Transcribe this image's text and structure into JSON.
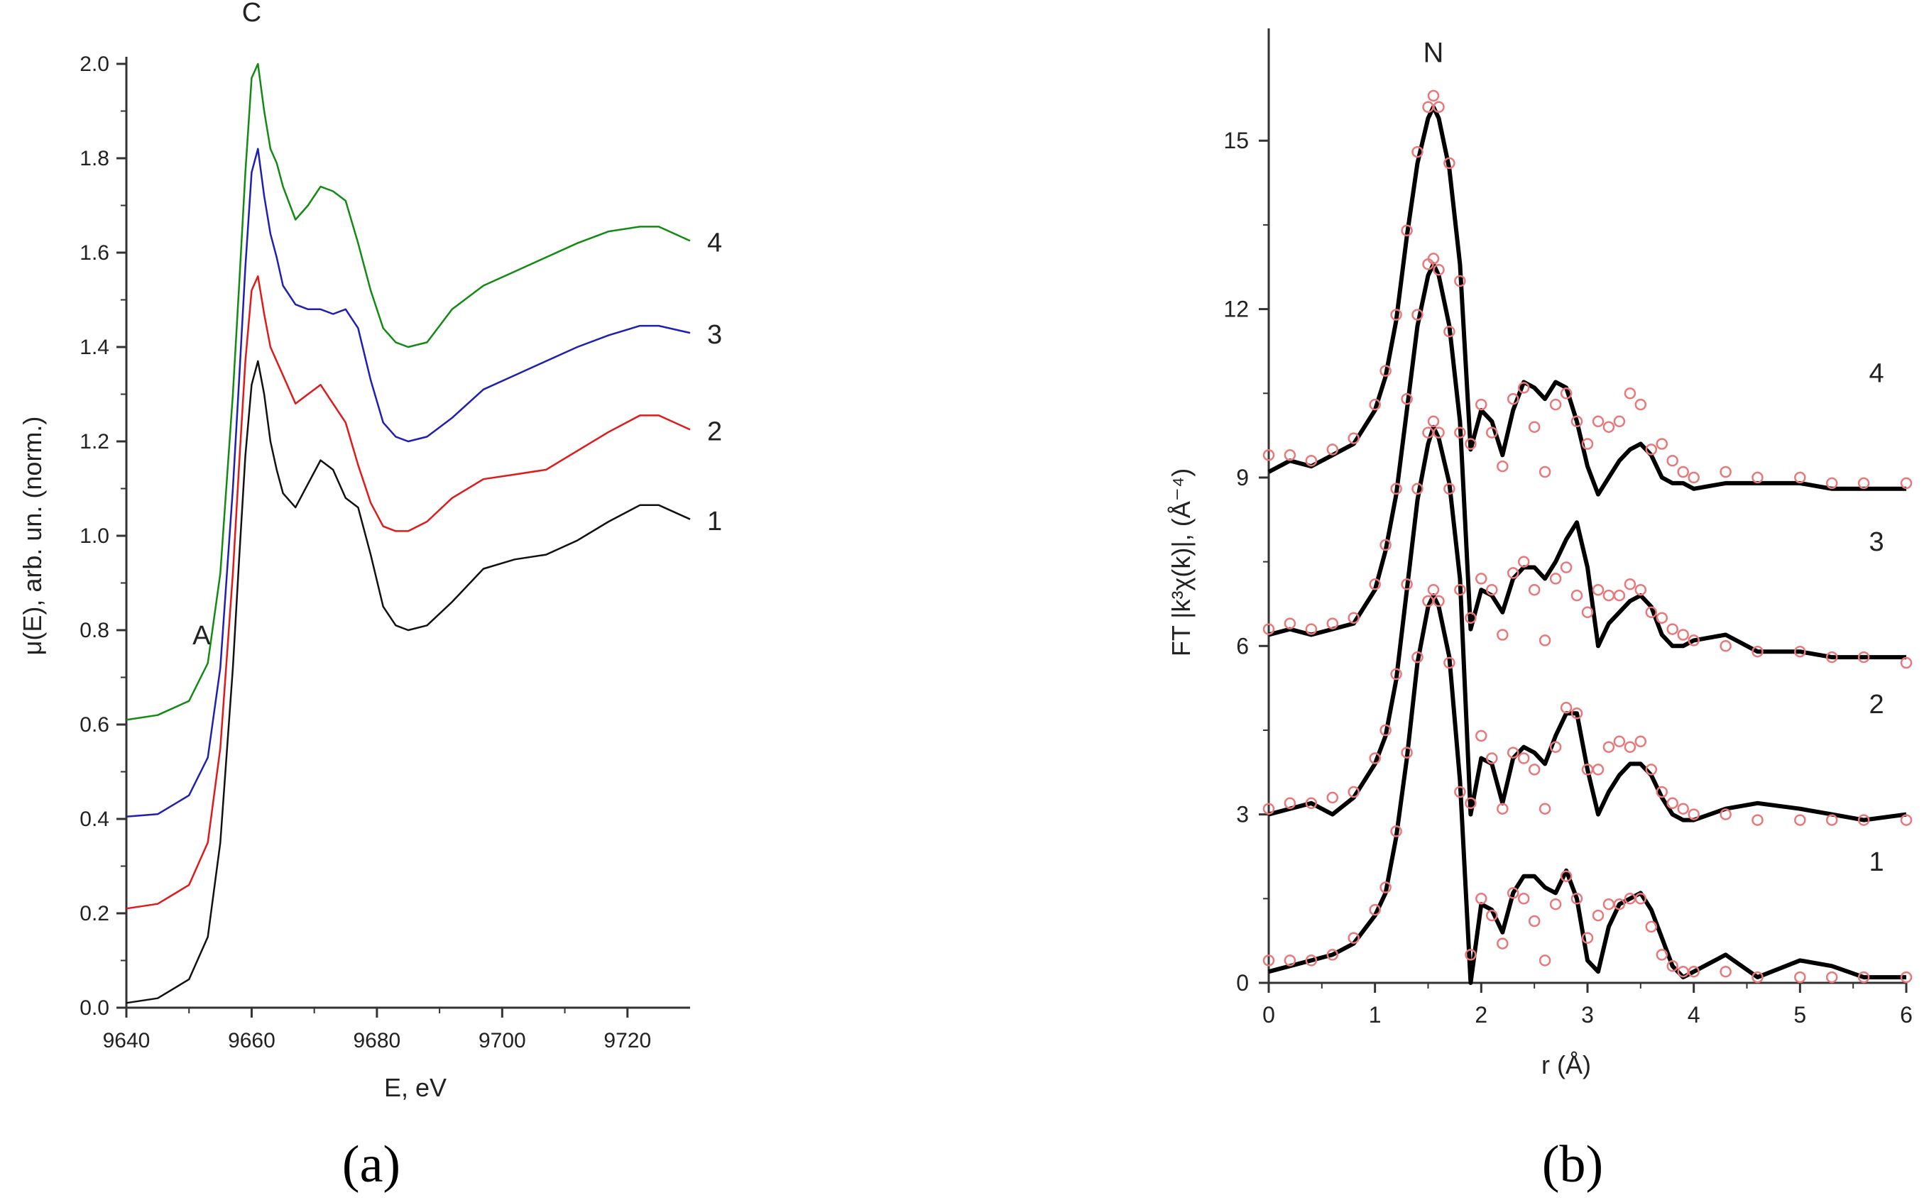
{
  "chart_data": [
    {
      "type": "line",
      "panel_label": "(a)",
      "title": "",
      "xlabel": "E, eV",
      "ylabel": "μ(E), arb. un. (norm.)",
      "xlim": [
        9640,
        9730
      ],
      "ylim": [
        0.0,
        2.0
      ],
      "xticks": [
        9640,
        9660,
        9680,
        9700,
        9720
      ],
      "xtick_labels": [
        "9640",
        "9660",
        "9680",
        "9700",
        "9720"
      ],
      "yticks": [
        0.0,
        0.2,
        0.4,
        0.6,
        0.8,
        1.0,
        1.2,
        1.4,
        1.6,
        1.8,
        2.0
      ],
      "ytick_labels": [
        "0.0",
        "0.2",
        "0.4",
        "0.6",
        "0.8",
        "1.0",
        "1.2",
        "1.4",
        "1.6",
        "1.8",
        "2.0"
      ],
      "annotations": [
        {
          "text": "A",
          "x": 9652,
          "y": 0.77
        },
        {
          "text": "C",
          "x": 9660,
          "y": 2.09
        }
      ],
      "x": [
        9640,
        9645,
        9650,
        9653,
        9655,
        9657,
        9658,
        9659,
        9660,
        9661,
        9662,
        9663,
        9664,
        9665,
        9667,
        9669,
        9671,
        9673,
        9675,
        9677,
        9679,
        9681,
        9683,
        9685,
        9688,
        9692,
        9697,
        9702,
        9707,
        9712,
        9717,
        9722,
        9725,
        9730
      ],
      "series": [
        {
          "name": "1",
          "label": "1",
          "color": "#111111",
          "values": [
            0.01,
            0.02,
            0.06,
            0.15,
            0.35,
            0.72,
            0.95,
            1.17,
            1.32,
            1.37,
            1.3,
            1.2,
            1.14,
            1.09,
            1.06,
            1.11,
            1.16,
            1.14,
            1.08,
            1.06,
            0.96,
            0.85,
            0.81,
            0.8,
            0.81,
            0.86,
            0.93,
            0.95,
            0.96,
            0.99,
            1.03,
            1.065,
            1.065,
            1.035
          ]
        },
        {
          "name": "2",
          "label": "2",
          "color": "#e01a1a",
          "values": [
            0.21,
            0.22,
            0.26,
            0.35,
            0.55,
            0.92,
            1.15,
            1.37,
            1.52,
            1.55,
            1.47,
            1.4,
            1.37,
            1.34,
            1.28,
            1.3,
            1.32,
            1.28,
            1.24,
            1.15,
            1.07,
            1.02,
            1.01,
            1.01,
            1.03,
            1.08,
            1.12,
            1.13,
            1.14,
            1.18,
            1.22,
            1.255,
            1.255,
            1.225
          ]
        },
        {
          "name": "3",
          "label": "3",
          "color": "#1f1fb0",
          "values": [
            0.405,
            0.41,
            0.45,
            0.53,
            0.72,
            1.1,
            1.33,
            1.57,
            1.77,
            1.82,
            1.72,
            1.64,
            1.59,
            1.53,
            1.49,
            1.48,
            1.48,
            1.47,
            1.48,
            1.44,
            1.33,
            1.24,
            1.21,
            1.2,
            1.21,
            1.25,
            1.31,
            1.34,
            1.37,
            1.4,
            1.425,
            1.445,
            1.445,
            1.43
          ]
        },
        {
          "name": "4",
          "label": "4",
          "color": "#138a13",
          "values": [
            0.61,
            0.62,
            0.65,
            0.73,
            0.92,
            1.3,
            1.53,
            1.77,
            1.97,
            2.0,
            1.9,
            1.82,
            1.79,
            1.74,
            1.67,
            1.7,
            1.74,
            1.73,
            1.71,
            1.62,
            1.52,
            1.44,
            1.41,
            1.4,
            1.41,
            1.48,
            1.53,
            1.56,
            1.59,
            1.62,
            1.645,
            1.655,
            1.655,
            1.625
          ]
        }
      ]
    },
    {
      "type": "line",
      "panel_label": "(b)",
      "title": "",
      "xlabel": "r (Å)",
      "ylabel": "FT |k³χ(k)|, (Å⁻⁴)",
      "xlim": [
        0,
        6
      ],
      "ylim": [
        0,
        17
      ],
      "xticks": [
        0,
        1,
        2,
        3,
        4,
        5,
        6
      ],
      "xtick_labels": [
        "0",
        "1",
        "2",
        "3",
        "4",
        "5",
        "6"
      ],
      "yticks": [
        0,
        3,
        6,
        9,
        12,
        15
      ],
      "ytick_labels": [
        "0",
        "3",
        "6",
        "9",
        "12",
        "15"
      ],
      "annotations": [
        {
          "text": "N",
          "x": 1.55,
          "y": 16.4
        }
      ],
      "x": [
        0,
        0.2,
        0.4,
        0.6,
        0.8,
        1.0,
        1.1,
        1.2,
        1.3,
        1.4,
        1.5,
        1.55,
        1.6,
        1.7,
        1.8,
        1.9,
        2.0,
        2.1,
        2.2,
        2.3,
        2.4,
        2.5,
        2.6,
        2.7,
        2.8,
        2.9,
        3.0,
        3.1,
        3.2,
        3.3,
        3.4,
        3.5,
        3.6,
        3.7,
        3.8,
        3.9,
        4.0,
        4.3,
        4.6,
        5.0,
        5.3,
        5.6,
        6.0
      ],
      "series": [
        {
          "name": "4 (fit)",
          "label": "4",
          "style": "line",
          "color": "#000000",
          "values": [
            9.1,
            9.3,
            9.2,
            9.4,
            9.6,
            10.2,
            10.8,
            11.8,
            13.3,
            14.6,
            15.4,
            15.6,
            15.4,
            14.5,
            12.8,
            9.5,
            10.2,
            10.0,
            9.4,
            10.2,
            10.7,
            10.6,
            10.4,
            10.7,
            10.6,
            10.0,
            9.2,
            8.7,
            9.0,
            9.3,
            9.5,
            9.6,
            9.4,
            9.0,
            8.9,
            8.9,
            8.8,
            8.9,
            8.9,
            8.9,
            8.8,
            8.8,
            8.8
          ]
        },
        {
          "name": "4 (exp)",
          "style": "markers",
          "color": "#e8787a",
          "values": [
            9.4,
            9.4,
            9.3,
            9.5,
            9.7,
            10.3,
            10.9,
            11.9,
            13.4,
            14.8,
            15.6,
            15.8,
            15.6,
            14.6,
            12.5,
            9.6,
            10.3,
            9.8,
            9.2,
            10.4,
            10.6,
            9.9,
            9.1,
            10.3,
            10.5,
            10.0,
            9.6,
            10.0,
            9.9,
            10.0,
            10.5,
            10.3,
            9.5,
            9.6,
            9.3,
            9.1,
            9.0,
            9.1,
            9.0,
            9.0,
            8.9,
            8.9,
            8.9
          ]
        },
        {
          "name": "3 (fit)",
          "label": "3",
          "style": "line",
          "color": "#000000",
          "values": [
            6.2,
            6.3,
            6.2,
            6.3,
            6.4,
            7.0,
            7.7,
            8.7,
            10.2,
            11.7,
            12.6,
            12.8,
            12.6,
            11.7,
            10.0,
            6.3,
            7.0,
            6.9,
            6.6,
            7.2,
            7.4,
            7.4,
            7.2,
            7.5,
            7.9,
            8.2,
            7.4,
            6.0,
            6.4,
            6.6,
            6.8,
            6.9,
            6.7,
            6.2,
            6.0,
            6.0,
            6.1,
            6.2,
            5.9,
            5.9,
            5.8,
            5.8,
            5.8
          ]
        },
        {
          "name": "3 (exp)",
          "style": "markers",
          "color": "#e8787a",
          "values": [
            6.3,
            6.4,
            6.3,
            6.4,
            6.5,
            7.1,
            7.8,
            8.8,
            10.4,
            11.9,
            12.8,
            12.9,
            12.7,
            11.6,
            9.8,
            6.5,
            7.2,
            7.0,
            6.2,
            7.3,
            7.5,
            7.0,
            6.1,
            7.2,
            7.4,
            6.9,
            6.6,
            7.0,
            6.9,
            6.9,
            7.1,
            7.0,
            6.6,
            6.5,
            6.3,
            6.2,
            6.1,
            6.0,
            5.9,
            5.9,
            5.8,
            5.8,
            5.7
          ]
        },
        {
          "name": "2 (fit)",
          "label": "2",
          "style": "line",
          "color": "#000000",
          "values": [
            3.0,
            3.1,
            3.2,
            3.0,
            3.3,
            3.9,
            4.4,
            5.4,
            7.0,
            8.6,
            9.6,
            9.9,
            9.7,
            8.9,
            7.2,
            3.0,
            4.0,
            3.9,
            3.2,
            4.0,
            4.2,
            4.1,
            3.9,
            4.4,
            4.8,
            4.8,
            3.8,
            3.0,
            3.4,
            3.7,
            3.9,
            3.9,
            3.7,
            3.3,
            3.0,
            2.9,
            2.9,
            3.1,
            3.2,
            3.1,
            3.0,
            2.9,
            3.0
          ]
        },
        {
          "name": "2 (exp)",
          "style": "markers",
          "color": "#e8787a",
          "values": [
            3.1,
            3.2,
            3.2,
            3.3,
            3.4,
            4.0,
            4.5,
            5.5,
            7.1,
            8.8,
            9.8,
            10.0,
            9.8,
            8.8,
            7.0,
            3.2,
            4.4,
            4.0,
            3.1,
            4.1,
            4.0,
            3.8,
            3.1,
            4.2,
            4.9,
            4.8,
            3.8,
            3.8,
            4.2,
            4.3,
            4.2,
            4.3,
            3.8,
            3.4,
            3.2,
            3.1,
            3.0,
            3.0,
            2.9,
            2.9,
            2.9,
            2.9,
            2.9
          ]
        },
        {
          "name": "1 (fit)",
          "label": "1",
          "style": "line",
          "color": "#000000",
          "values": [
            0.2,
            0.3,
            0.4,
            0.5,
            0.7,
            1.2,
            1.6,
            2.6,
            4.0,
            5.7,
            6.7,
            6.9,
            6.7,
            5.8,
            3.6,
            0.0,
            1.4,
            1.3,
            0.9,
            1.6,
            1.9,
            1.9,
            1.7,
            1.6,
            2.0,
            1.5,
            0.4,
            0.2,
            1.0,
            1.4,
            1.5,
            1.6,
            1.3,
            0.8,
            0.3,
            0.1,
            0.2,
            0.5,
            0.1,
            0.4,
            0.3,
            0.1,
            0.1
          ]
        },
        {
          "name": "1 (exp)",
          "style": "markers",
          "color": "#e8787a",
          "values": [
            0.4,
            0.4,
            0.4,
            0.5,
            0.8,
            1.3,
            1.7,
            2.7,
            4.1,
            5.8,
            6.8,
            7.0,
            6.8,
            5.7,
            3.4,
            0.5,
            1.5,
            1.2,
            0.7,
            1.6,
            1.5,
            1.1,
            0.4,
            1.4,
            1.9,
            1.5,
            0.8,
            1.2,
            1.4,
            1.4,
            1.5,
            1.5,
            1.0,
            0.5,
            0.3,
            0.2,
            0.2,
            0.2,
            0.1,
            0.1,
            0.1,
            0.1,
            0.1
          ]
        }
      ]
    }
  ]
}
